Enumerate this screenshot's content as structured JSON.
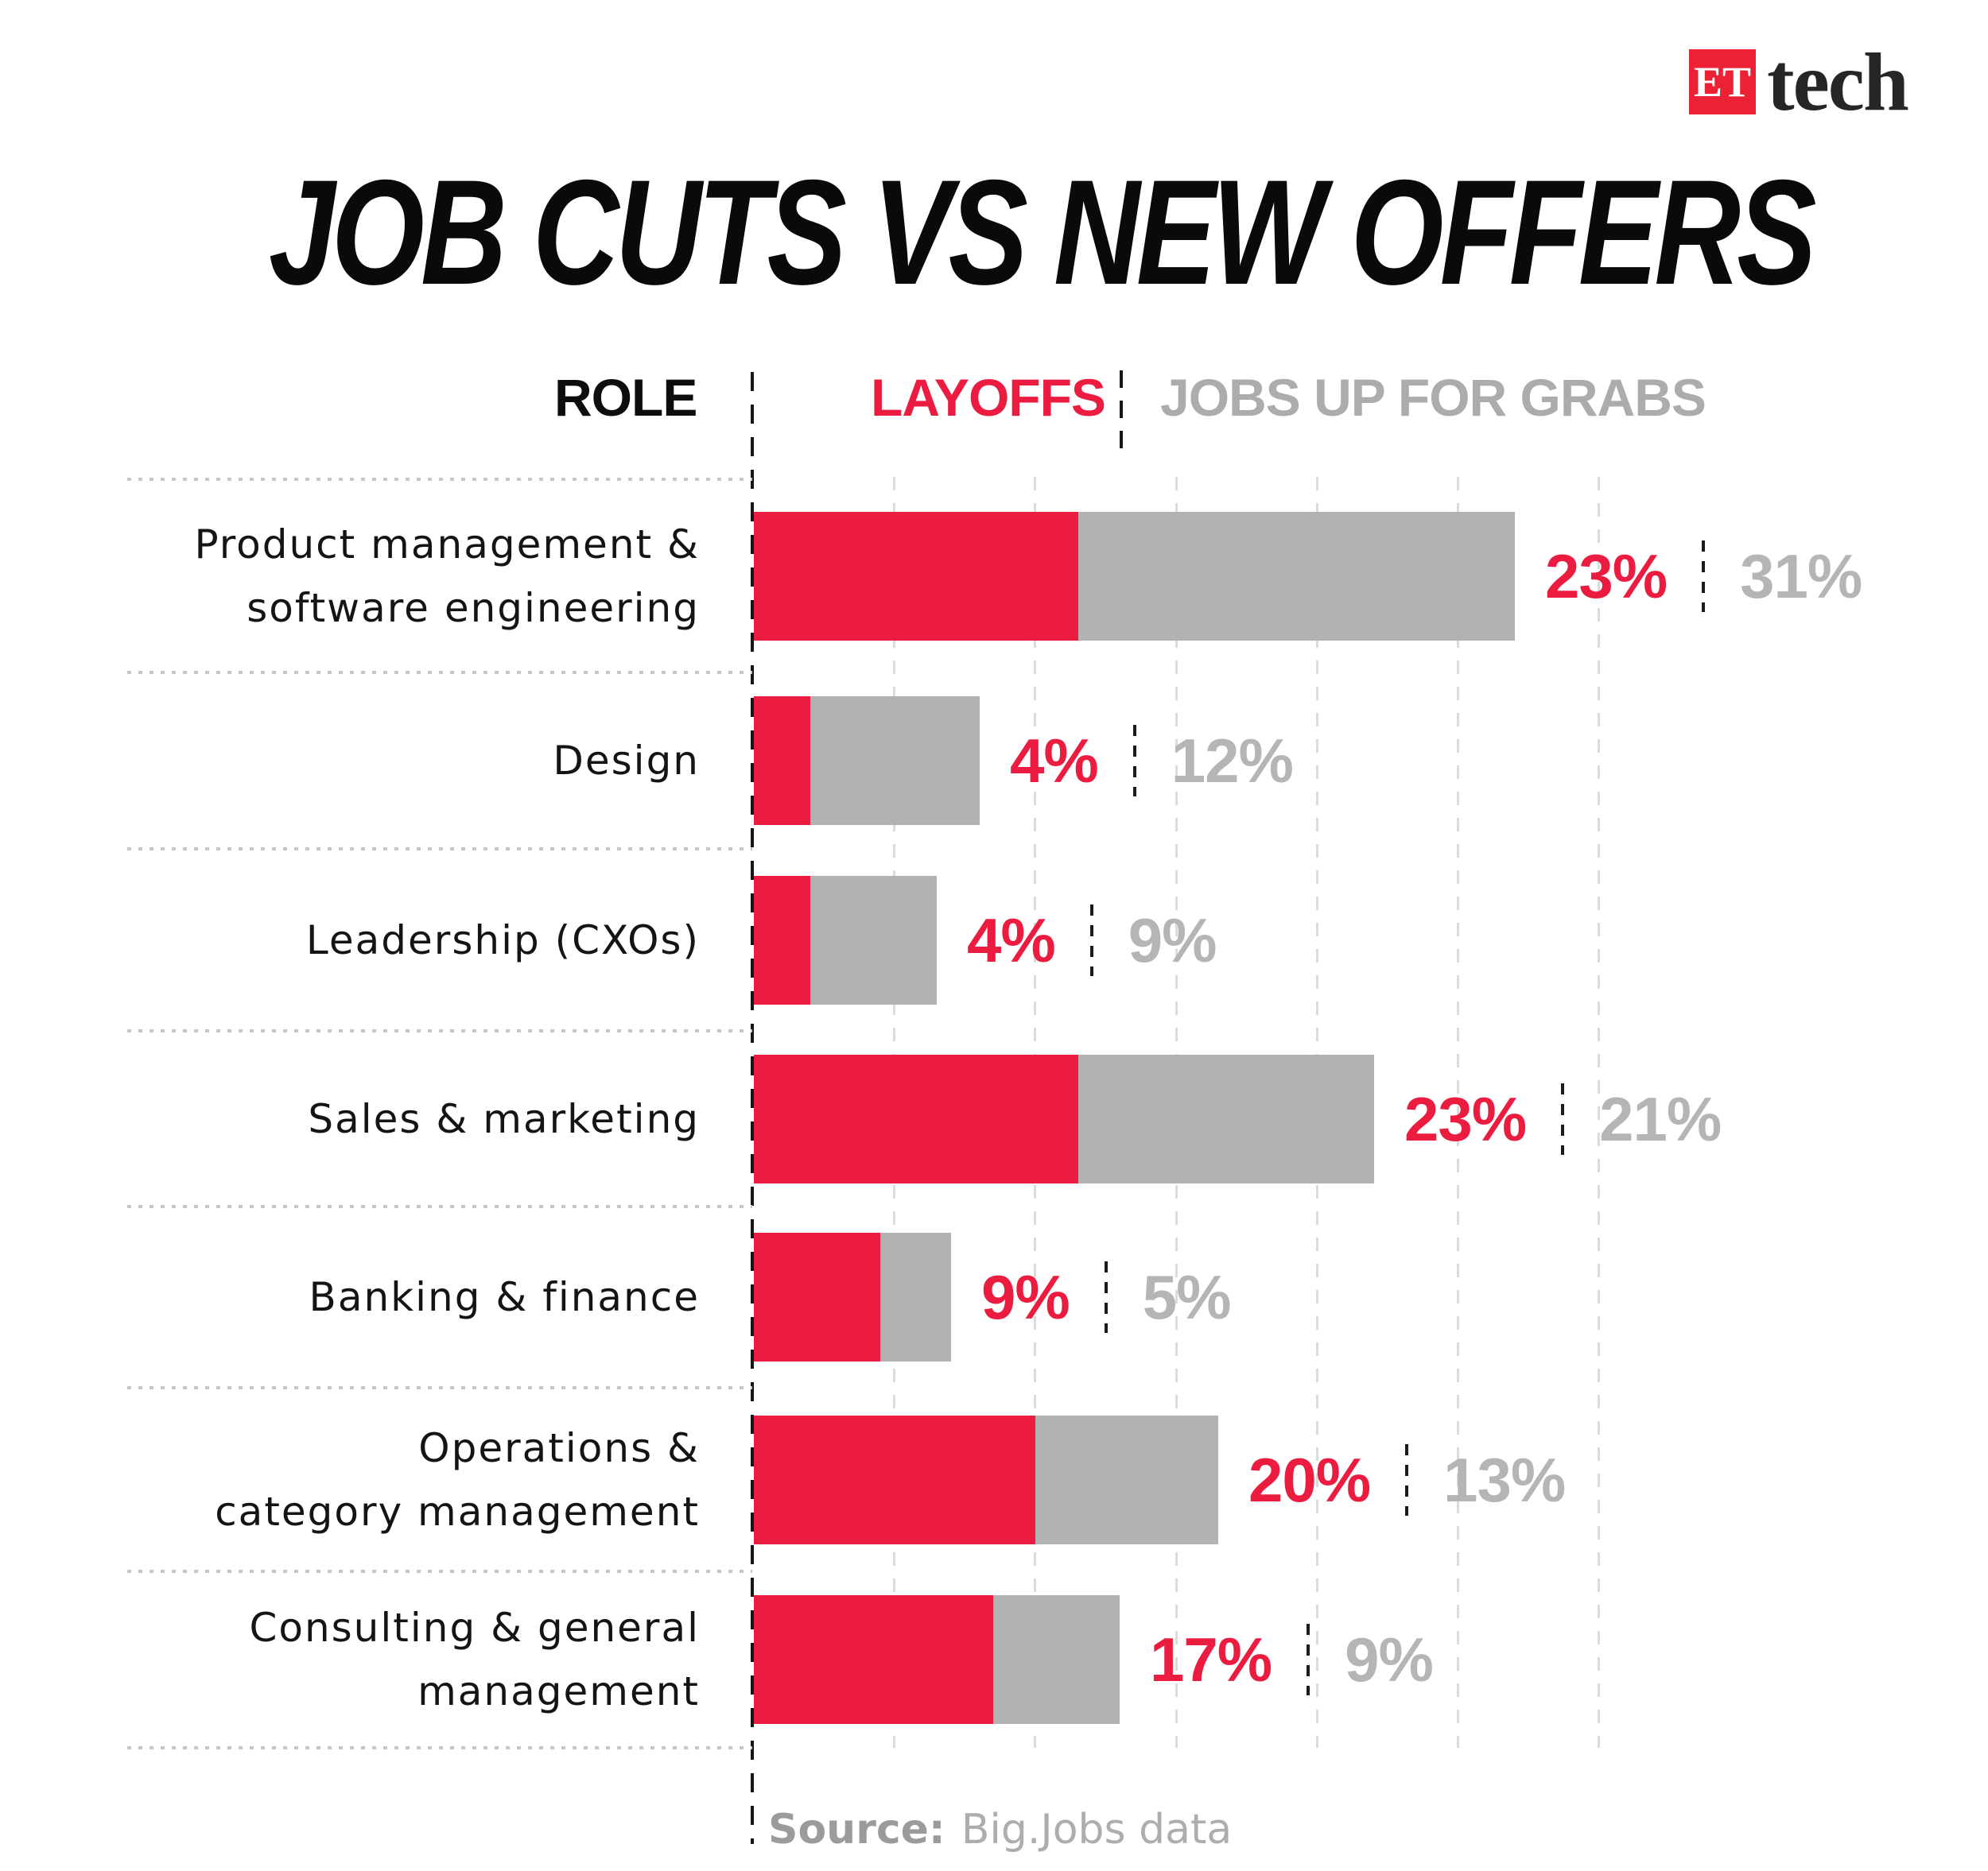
{
  "brand": {
    "logo_square_text": "ET",
    "logo_name": "tech"
  },
  "title": "JOB CUTS VS NEW OFFERS",
  "header": {
    "role": "ROLE",
    "layoffs": "LAYOFFS",
    "jobs": "JOBS UP FOR GRABS"
  },
  "source": {
    "label": "Source:",
    "value": "Big.Jobs data"
  },
  "colors": {
    "layoffs_red": "#EC1C40",
    "jobs_gray": "#B2B2B2",
    "header_jobs_gray": "#ACACAC",
    "value_gray": "#B5B5B5",
    "logo_red": "#ED2136",
    "text_dark": "#111111",
    "source_gray": "#9B9B9B"
  },
  "chart_data": {
    "type": "bar",
    "orientation": "horizontal",
    "stacked": true,
    "unit": "%",
    "title": "JOB CUTS VS NEW OFFERS",
    "categories": [
      "Product management &\nsoftware engineering",
      "Design",
      "Leadership (CXOs)",
      "Sales & marketing",
      "Banking & finance",
      "Operations &\ncategory management",
      "Consulting & general\nmanagement"
    ],
    "series": [
      {
        "name": "LAYOFFS",
        "color": "#EC1C40",
        "values": [
          23,
          4,
          4,
          23,
          9,
          20,
          17
        ]
      },
      {
        "name": "JOBS UP FOR GRABS",
        "color": "#B2B2B2",
        "values": [
          31,
          12,
          9,
          21,
          5,
          13,
          9
        ]
      }
    ],
    "value_labels": true,
    "axis_max_pct": 60,
    "gridline_interval_pct": 10,
    "legend_position": "top",
    "grid": true
  }
}
